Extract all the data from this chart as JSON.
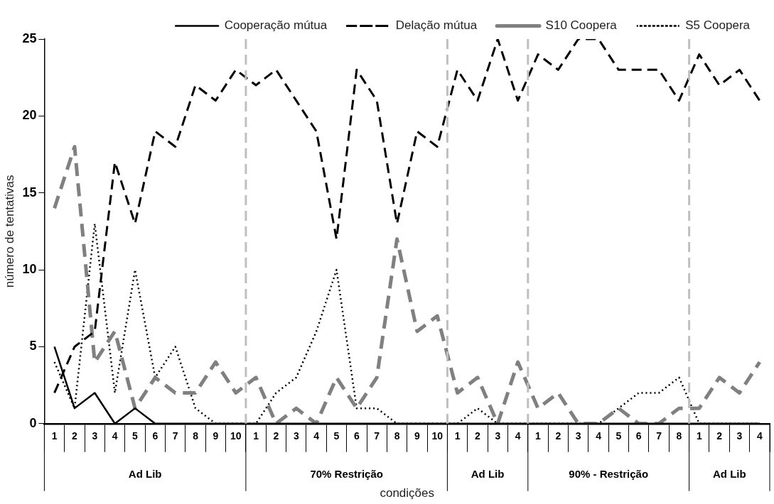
{
  "chart_data": {
    "type": "line",
    "xlabel": "condições",
    "ylabel": "número de tentativas",
    "categories": [
      "1",
      "2",
      "3",
      "4",
      "5",
      "6",
      "7",
      "8",
      "9",
      "10",
      "1",
      "2",
      "3",
      "4",
      "5",
      "6",
      "7",
      "8",
      "9",
      "10",
      "1",
      "2",
      "3",
      "4",
      "1",
      "2",
      "3",
      "4",
      "5",
      "6",
      "7",
      "8",
      "1",
      "2",
      "3",
      "4"
    ],
    "series": [
      {
        "name": "Cooperação mútua",
        "color": "#000000",
        "line_style": "solid",
        "values": [
          5,
          1,
          2,
          0,
          1,
          0,
          0,
          0,
          0,
          0,
          0,
          0,
          0,
          0,
          0,
          0,
          0,
          0,
          0,
          0,
          0,
          0,
          0,
          0,
          0,
          0,
          0,
          0,
          0,
          0,
          0,
          0,
          0,
          0,
          0,
          0
        ]
      },
      {
        "name": "Delação mútua",
        "color": "#000000",
        "line_style": "dashed",
        "values": [
          2,
          5,
          6,
          17,
          13,
          19,
          18,
          22,
          21,
          23,
          22,
          23,
          21,
          19,
          12,
          23,
          21,
          13,
          19,
          18,
          23,
          21,
          25,
          21,
          24,
          23,
          25,
          25,
          23,
          23,
          23,
          21,
          24,
          22,
          23,
          21
        ]
      },
      {
        "name": "S10 Coopera",
        "color": "#808080",
        "line_style": "dashed",
        "values": [
          14,
          18,
          4,
          6,
          1,
          3,
          2,
          2,
          4,
          2,
          3,
          0,
          1,
          0,
          3,
          1,
          3,
          12,
          6,
          7,
          2,
          3,
          0,
          4,
          1,
          2,
          0,
          0,
          1,
          0,
          0,
          1,
          1,
          3,
          2,
          4
        ]
      },
      {
        "name": "S5 Coopera",
        "color": "#000000",
        "line_style": "dotted",
        "values": [
          4,
          1,
          13,
          2,
          10,
          3,
          5,
          1,
          0,
          0,
          0,
          2,
          3,
          6,
          10,
          1,
          1,
          0,
          0,
          0,
          0,
          1,
          0,
          0,
          0,
          0,
          0,
          0,
          1,
          2,
          2,
          3,
          0,
          0,
          0,
          0
        ]
      }
    ],
    "ylim": [
      0,
      25
    ],
    "yticks": [
      0,
      5,
      10,
      15,
      20,
      25
    ],
    "grid": false,
    "legend": "top",
    "marker": "none",
    "annotations": [
      "Ad Lib",
      "70% Restrição",
      "Ad Lib",
      "90% - Restrição",
      "Ad Lib"
    ]
  }
}
